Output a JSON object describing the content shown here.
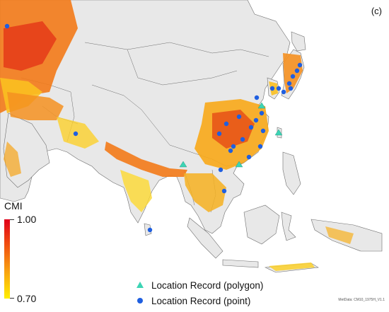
{
  "panel_label": "(c)",
  "legend": {
    "title": "CMI",
    "max": "1.00",
    "min": "0.70",
    "polygon_label": "Location Record (polygon)",
    "point_label": "Location Record (point)",
    "colors": {
      "polygon": "#3cd4b4",
      "point": "#1f5fe0",
      "high": "#e0001a",
      "low": "#fff000"
    }
  },
  "credit": "MetData: CM10_1975H_V1.1"
}
